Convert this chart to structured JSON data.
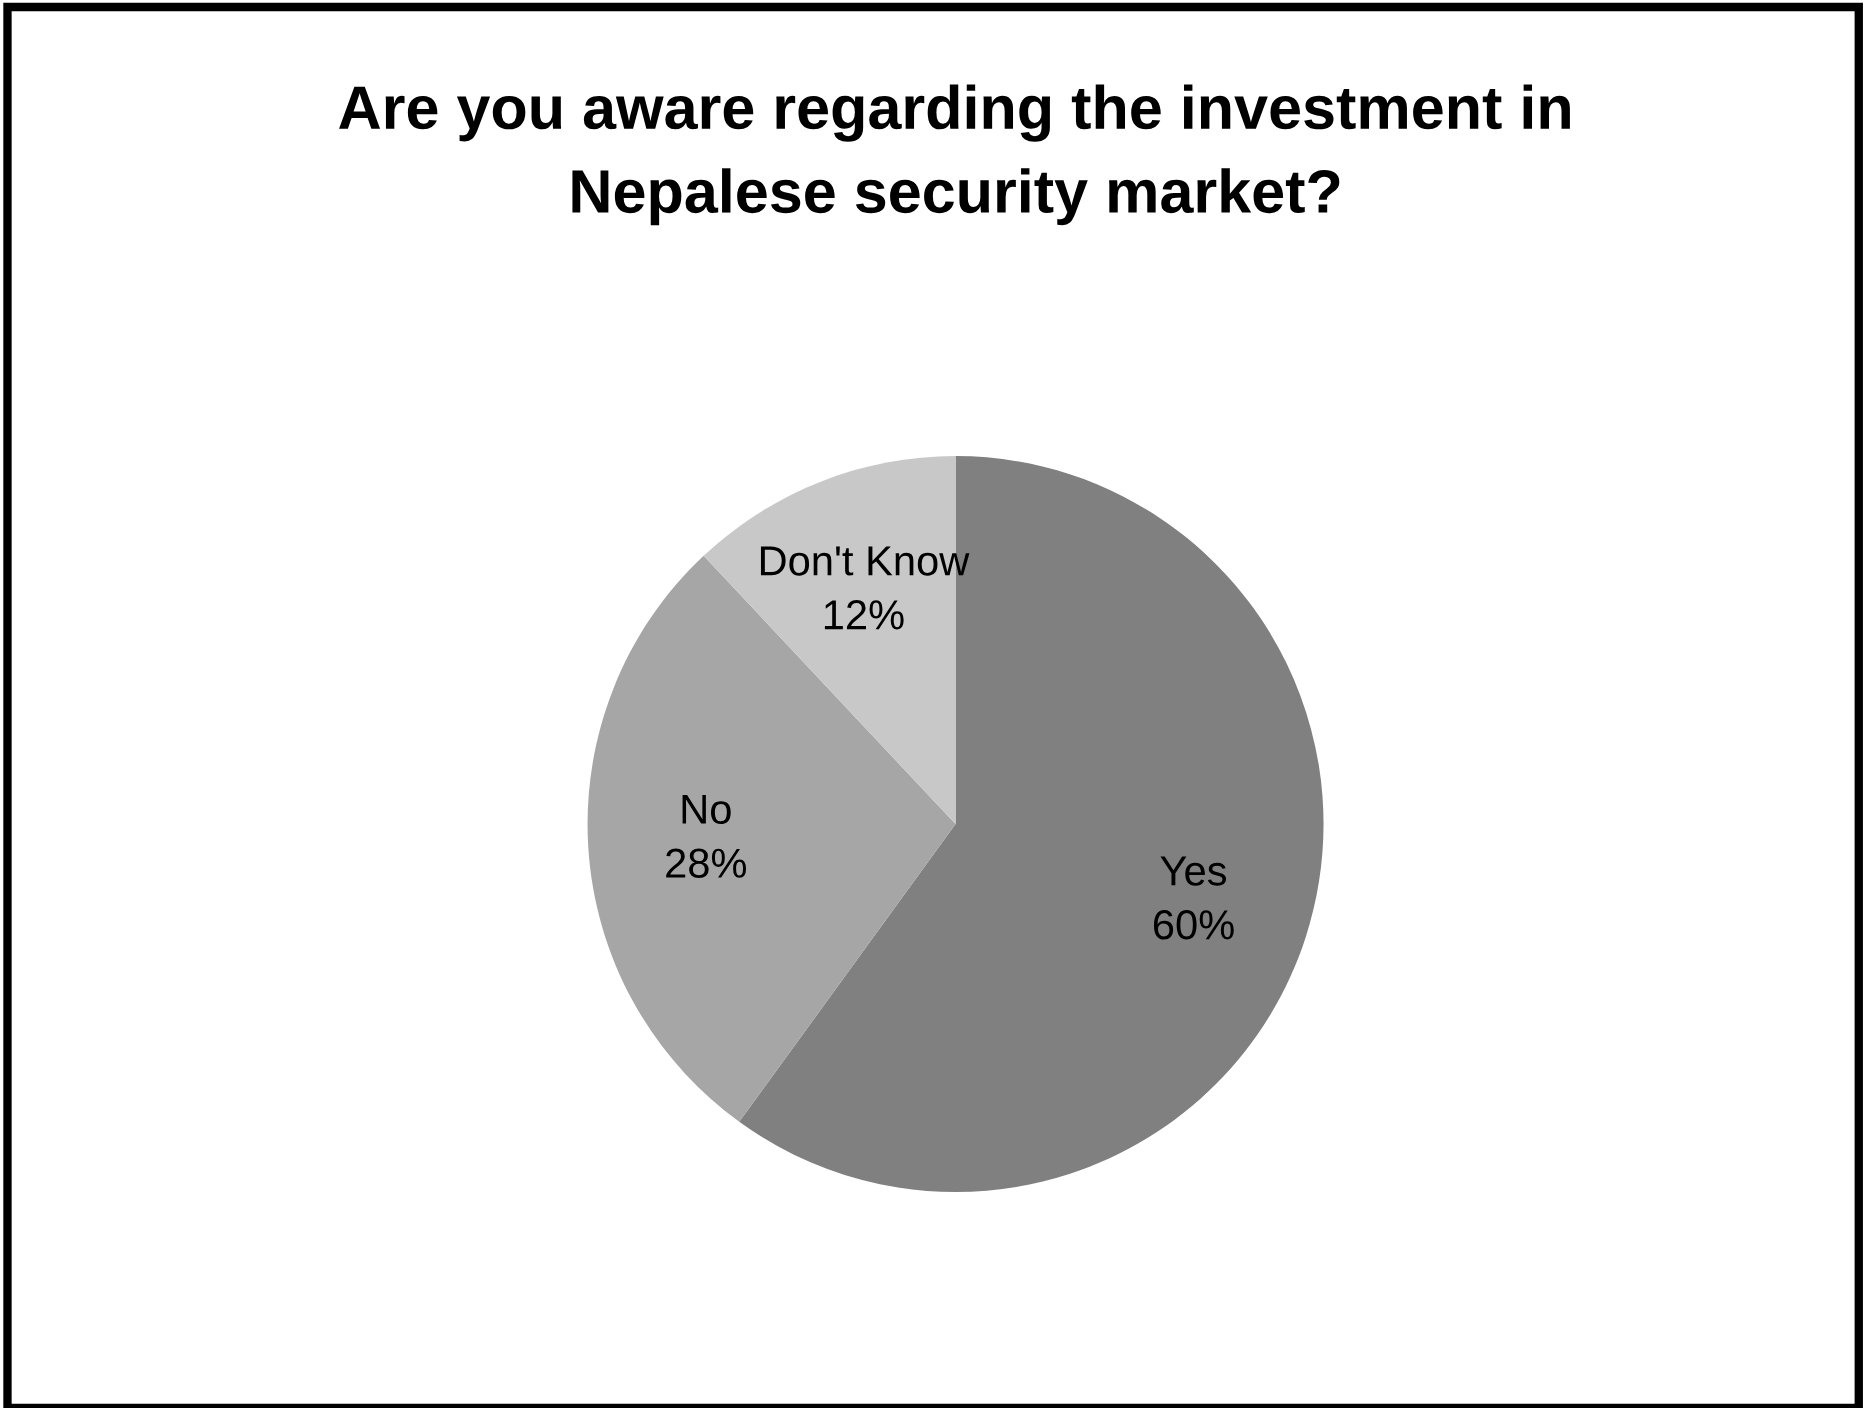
{
  "chart_data": {
    "type": "pie",
    "title": "Are you aware regarding the investment in\nNepalese security market?",
    "categories": [
      "Yes",
      "No",
      "Don't Know"
    ],
    "values": [
      60,
      28,
      12
    ],
    "value_labels": [
      "60%",
      "28%",
      "12%"
    ],
    "colors": [
      "#808080",
      "#a6a6a6",
      "#c8c8c8"
    ],
    "legend": false
  }
}
